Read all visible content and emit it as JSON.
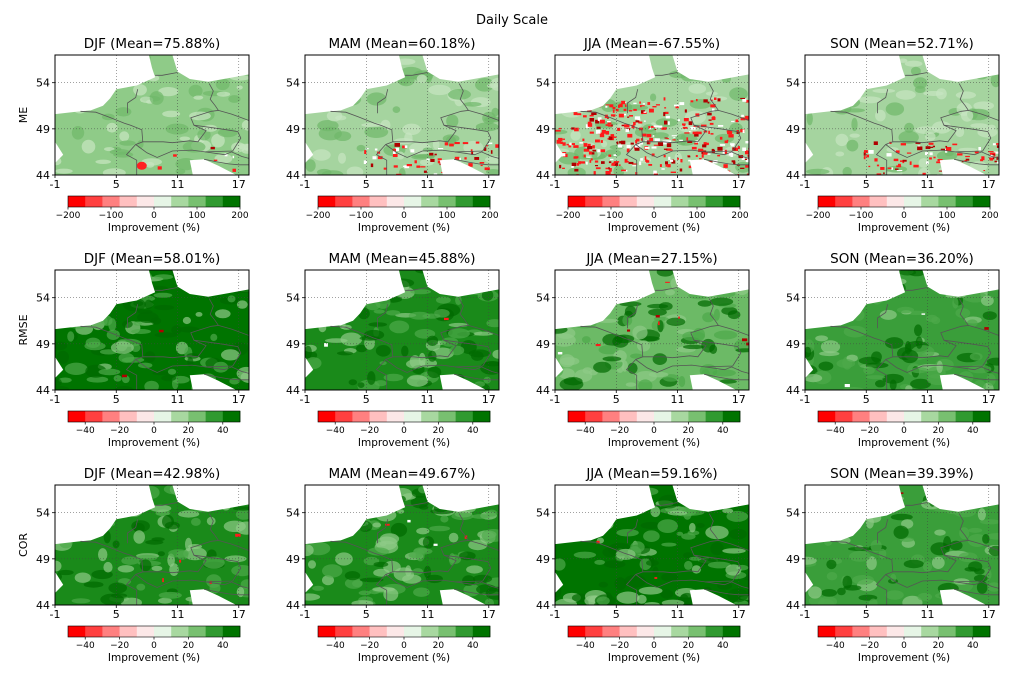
{
  "figure": {
    "suptitle": "Daily Scale",
    "colors": {
      "land_improve": "#a8d5a3",
      "strong_improve": "#007400",
      "degrade": "#ff2a2a",
      "sea": "#ffffff",
      "border": "#555555"
    }
  },
  "chart_data": {
    "type": "heatmap",
    "title": "Daily Scale",
    "x_ticks": [
      "-1",
      "5",
      "11",
      "17"
    ],
    "y_ticks": [
      "54",
      "49",
      "44"
    ],
    "xlim": [
      -1,
      18
    ],
    "ylim": [
      44,
      57
    ],
    "colorbar_label": "Improvement (%)",
    "colorbar_colors": [
      "#ff0000",
      "#ff4040",
      "#ff8080",
      "#ffc0c0",
      "#fce8e8",
      "#e6f5e6",
      "#a8d8a0",
      "#78c070",
      "#309a30",
      "#007400"
    ],
    "rows": [
      {
        "name": "ME",
        "colorbar_range": [
          -200,
          200
        ],
        "colorbar_ticks": [
          "−200",
          "−100",
          "0",
          "100",
          "200"
        ],
        "panels": [
          {
            "season": "DJF",
            "title": "DJF (Mean=75.88%)",
            "mean": 75.88
          },
          {
            "season": "MAM",
            "title": "MAM (Mean=60.18%)",
            "mean": 60.18
          },
          {
            "season": "JJA",
            "title": "JJA (Mean=-67.55%)",
            "mean": -67.55
          },
          {
            "season": "SON",
            "title": "SON (Mean=52.71%)",
            "mean": 52.71
          }
        ]
      },
      {
        "name": "RMSE",
        "colorbar_range": [
          -50,
          50
        ],
        "colorbar_ticks": [
          "−40",
          "−20",
          "0",
          "20",
          "40"
        ],
        "panels": [
          {
            "season": "DJF",
            "title": "DJF (Mean=58.01%)",
            "mean": 58.01
          },
          {
            "season": "MAM",
            "title": "MAM (Mean=45.88%)",
            "mean": 45.88
          },
          {
            "season": "JJA",
            "title": "JJA (Mean=27.15%)",
            "mean": 27.15
          },
          {
            "season": "SON",
            "title": "SON (Mean=36.20%)",
            "mean": 36.2
          }
        ]
      },
      {
        "name": "COR",
        "colorbar_range": [
          -50,
          50
        ],
        "colorbar_ticks": [
          "−40",
          "−20",
          "0",
          "20",
          "40"
        ],
        "panels": [
          {
            "season": "DJF",
            "title": "DJF (Mean=42.98%)",
            "mean": 42.98
          },
          {
            "season": "MAM",
            "title": "MAM (Mean=49.67%)",
            "mean": 49.67
          },
          {
            "season": "JJA",
            "title": "JJA (Mean=59.16%)",
            "mean": 59.16
          },
          {
            "season": "SON",
            "title": "SON (Mean=39.39%)",
            "mean": 39.39
          }
        ]
      }
    ]
  }
}
